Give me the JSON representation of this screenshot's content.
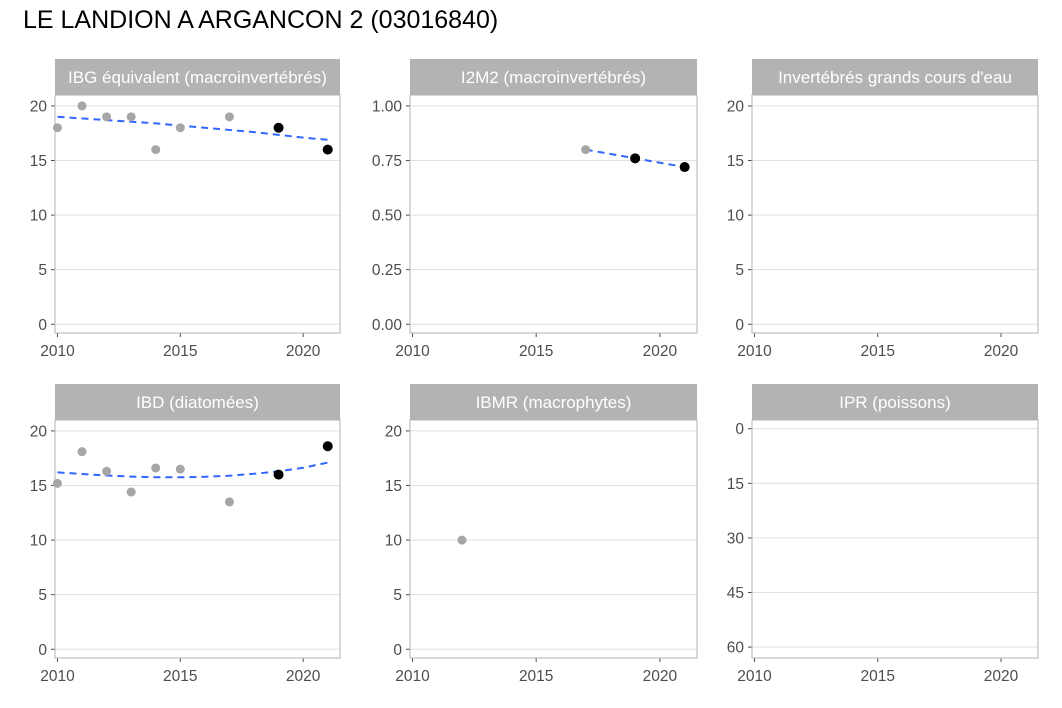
{
  "title": "LE LANDION A ARGANCON 2 (03016840)",
  "colors": {
    "strip_bg": "#b3b3b3",
    "strip_text": "#ffffff",
    "panel_border": "#b3b3b3",
    "grid": "#e0e0e0",
    "point_past": "#a6a6a6",
    "point_recent": "#000000",
    "trend": "#3366ff"
  },
  "chart_data": [
    {
      "type": "scatter",
      "panel": "ibg",
      "strip_label": "IBG équivalent (macroinvertébrés)",
      "xlim": [
        2009.9,
        2021.5
      ],
      "ylim": [
        -0.8,
        21.0
      ],
      "y_reversed": false,
      "x_ticks": [
        2010,
        2015,
        2020
      ],
      "y_ticks": [
        0,
        5,
        10,
        15,
        20
      ],
      "y_tick_labels": [
        "0",
        "5",
        "10",
        "15",
        "20"
      ],
      "points": [
        {
          "x": 2010,
          "y": 18,
          "recent": false
        },
        {
          "x": 2011,
          "y": 20,
          "recent": false
        },
        {
          "x": 2012,
          "y": 19,
          "recent": false
        },
        {
          "x": 2013,
          "y": 19,
          "recent": false
        },
        {
          "x": 2014,
          "y": 16,
          "recent": false
        },
        {
          "x": 2015,
          "y": 18,
          "recent": false
        },
        {
          "x": 2017,
          "y": 19,
          "recent": false
        },
        {
          "x": 2019,
          "y": 18,
          "recent": true
        },
        {
          "x": 2021,
          "y": 16,
          "recent": true
        }
      ],
      "trend": [
        [
          2010,
          19.0
        ],
        [
          2012,
          18.7
        ],
        [
          2014,
          18.4
        ],
        [
          2016,
          18.0
        ],
        [
          2018,
          17.6
        ],
        [
          2020,
          17.1
        ],
        [
          2021,
          16.9
        ]
      ]
    },
    {
      "type": "scatter",
      "panel": "i2m2",
      "strip_label": "I2M2 (macroinvertébrés)",
      "xlim": [
        2009.9,
        2021.5
      ],
      "ylim": [
        -0.04,
        1.05
      ],
      "y_reversed": false,
      "x_ticks": [
        2010,
        2015,
        2020
      ],
      "y_ticks": [
        0,
        0.25,
        0.5,
        0.75,
        1.0
      ],
      "y_tick_labels": [
        "0.00",
        "0.25",
        "0.50",
        "0.75",
        "1.00"
      ],
      "points": [
        {
          "x": 2017,
          "y": 0.8,
          "recent": false
        },
        {
          "x": 2019,
          "y": 0.76,
          "recent": true
        },
        {
          "x": 2021,
          "y": 0.72,
          "recent": true
        }
      ],
      "trend": [
        [
          2017,
          0.8
        ],
        [
          2019,
          0.76
        ],
        [
          2021,
          0.72
        ]
      ]
    },
    {
      "type": "scatter",
      "panel": "igce",
      "strip_label": "Invertébrés grands cours d'eau",
      "xlim": [
        2009.9,
        2021.5
      ],
      "ylim": [
        -0.8,
        21.0
      ],
      "y_reversed": false,
      "x_ticks": [
        2010,
        2015,
        2020
      ],
      "y_ticks": [
        0,
        5,
        10,
        15,
        20
      ],
      "y_tick_labels": [
        "0",
        "5",
        "10",
        "15",
        "20"
      ],
      "points": [],
      "trend": []
    },
    {
      "type": "scatter",
      "panel": "ibd",
      "strip_label": "IBD (diatomées)",
      "xlim": [
        2009.9,
        2021.5
      ],
      "ylim": [
        -0.8,
        21.0
      ],
      "y_reversed": false,
      "x_ticks": [
        2010,
        2015,
        2020
      ],
      "y_ticks": [
        0,
        5,
        10,
        15,
        20
      ],
      "y_tick_labels": [
        "0",
        "5",
        "10",
        "15",
        "20"
      ],
      "points": [
        {
          "x": 2010,
          "y": 15.2,
          "recent": false
        },
        {
          "x": 2011,
          "y": 18.1,
          "recent": false
        },
        {
          "x": 2012,
          "y": 16.3,
          "recent": false
        },
        {
          "x": 2013,
          "y": 14.4,
          "recent": false
        },
        {
          "x": 2014,
          "y": 16.6,
          "recent": false
        },
        {
          "x": 2015,
          "y": 16.5,
          "recent": false
        },
        {
          "x": 2017,
          "y": 13.5,
          "recent": false
        },
        {
          "x": 2019,
          "y": 16.0,
          "recent": true
        },
        {
          "x": 2021,
          "y": 18.6,
          "recent": true
        }
      ],
      "trend": [
        [
          2010,
          16.2
        ],
        [
          2011,
          16.05
        ],
        [
          2012,
          15.92
        ],
        [
          2013,
          15.82
        ],
        [
          2014,
          15.76
        ],
        [
          2015,
          15.75
        ],
        [
          2016,
          15.8
        ],
        [
          2017,
          15.9
        ],
        [
          2018,
          16.07
        ],
        [
          2019,
          16.3
        ],
        [
          2020,
          16.62
        ],
        [
          2021,
          17.1
        ]
      ]
    },
    {
      "type": "scatter",
      "panel": "ibmr",
      "strip_label": "IBMR (macrophytes)",
      "xlim": [
        2009.9,
        2021.5
      ],
      "ylim": [
        -0.8,
        21.0
      ],
      "y_reversed": false,
      "x_ticks": [
        2010,
        2015,
        2020
      ],
      "y_ticks": [
        0,
        5,
        10,
        15,
        20
      ],
      "y_tick_labels": [
        "0",
        "5",
        "10",
        "15",
        "20"
      ],
      "points": [
        {
          "x": 2012,
          "y": 10,
          "recent": false
        }
      ],
      "trend": []
    },
    {
      "type": "scatter",
      "panel": "ipr",
      "strip_label": "IPR (poissons)",
      "xlim": [
        2009.9,
        2021.5
      ],
      "ylim": [
        -2.4,
        63.0
      ],
      "y_reversed": true,
      "x_ticks": [
        2010,
        2015,
        2020
      ],
      "y_ticks": [
        0,
        15,
        30,
        45,
        60
      ],
      "y_tick_labels": [
        "0",
        "15",
        "30",
        "45",
        "60"
      ],
      "points": [],
      "trend": []
    }
  ]
}
